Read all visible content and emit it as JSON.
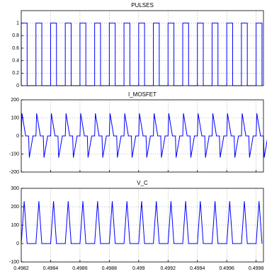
{
  "chart_data": [
    {
      "type": "line",
      "title": "PULSES",
      "color": "#0000ff",
      "grid": true,
      "xlim": [
        0.4982,
        0.49985
      ],
      "xticks": [
        0.4982,
        0.4984,
        0.4986,
        0.4988,
        0.499,
        0.4992,
        0.4994,
        0.4996,
        0.4998
      ],
      "ylim": [
        0,
        1.2
      ],
      "yticks": [
        0,
        0.2,
        0.4,
        0.6,
        0.8,
        1
      ],
      "x": [
        0.4982,
        0.4982,
        0.49824,
        0.49824,
        0.4983,
        0.4983,
        0.49834,
        0.49834,
        0.4984,
        0.4984,
        0.49844,
        0.49844,
        0.4985,
        0.4985,
        0.49854,
        0.49854,
        0.4986,
        0.4986,
        0.49864,
        0.49864,
        0.4987,
        0.4987,
        0.49874,
        0.49874,
        0.4988,
        0.4988,
        0.49884,
        0.49884,
        0.4989,
        0.4989,
        0.49894,
        0.49894,
        0.499,
        0.499,
        0.49904,
        0.49904,
        0.4991,
        0.4991,
        0.49914,
        0.49914,
        0.4992,
        0.4992,
        0.49924,
        0.49924,
        0.4993,
        0.4993,
        0.49934,
        0.49934,
        0.4994,
        0.4994,
        0.49944,
        0.49944,
        0.4995,
        0.4995,
        0.49954,
        0.49954,
        0.4996,
        0.4996,
        0.49964,
        0.49964,
        0.4997,
        0.4997,
        0.49974,
        0.49974,
        0.4998,
        0.4998,
        0.49984,
        0.49984
      ],
      "values": [
        0,
        1,
        1,
        0,
        0,
        1,
        1,
        0,
        0,
        1,
        1,
        0,
        0,
        1,
        1,
        0,
        0,
        1,
        1,
        0,
        0,
        1,
        1,
        0,
        0,
        1,
        1,
        0,
        0,
        1,
        1,
        0,
        0,
        1,
        1,
        0,
        0,
        1,
        1,
        0,
        0,
        1,
        1,
        0,
        0,
        1,
        1,
        0,
        0,
        1,
        1,
        0,
        0,
        1,
        1,
        0,
        0,
        1,
        1,
        0,
        0,
        1,
        1,
        0,
        0,
        1,
        1,
        0
      ]
    },
    {
      "type": "line",
      "title": "I_MOSFET",
      "color": "#0000ff",
      "grid": true,
      "xlim": [
        0.4982,
        0.49985
      ],
      "xticks": [
        0.4982,
        0.4984,
        0.4986,
        0.4988,
        0.499,
        0.4992,
        0.4994,
        0.4996,
        0.4998
      ],
      "ylim": [
        -200,
        200
      ],
      "yticks": [
        -200,
        -100,
        0,
        100,
        200
      ],
      "x": [
        0.4982,
        0.498205,
        0.49823,
        0.49825,
        0.498255,
        0.49828,
        0.4983,
        0.498305,
        0.49833,
        0.49835,
        0.498355,
        0.49838,
        0.4984,
        0.498405,
        0.49843,
        0.49845,
        0.498455,
        0.49848,
        0.4985,
        0.498505,
        0.49853,
        0.49855,
        0.498555,
        0.49858,
        0.4986,
        0.498605,
        0.49863,
        0.49865,
        0.498655,
        0.49868,
        0.4987,
        0.498705,
        0.49873,
        0.49875,
        0.498755,
        0.49878,
        0.4988,
        0.498805,
        0.49883,
        0.49885,
        0.498855,
        0.49888,
        0.4989,
        0.498905,
        0.49893,
        0.49895,
        0.498955,
        0.49898,
        0.499,
        0.499005,
        0.49903,
        0.49905,
        0.499055,
        0.49908,
        0.4991,
        0.499105,
        0.49913,
        0.49915,
        0.499155,
        0.49918,
        0.4992,
        0.499205,
        0.49923,
        0.49925,
        0.499255,
        0.49928,
        0.4993,
        0.499305,
        0.49933,
        0.49935,
        0.499355,
        0.49938,
        0.4994,
        0.499405,
        0.49943,
        0.49945,
        0.499455,
        0.49948,
        0.4995,
        0.499505,
        0.49953,
        0.49955,
        0.499555,
        0.49958,
        0.4996,
        0.499605,
        0.49963,
        0.49965,
        0.499655,
        0.49968,
        0.4997,
        0.499705,
        0.49973,
        0.49975,
        0.499755,
        0.49978,
        0.4998,
        0.499805,
        0.49983,
        0.49985,
        0.499855,
        0.49988
      ],
      "values": [
        0,
        125,
        0,
        0,
        -120,
        0,
        0,
        125,
        0,
        0,
        -120,
        0,
        0,
        125,
        0,
        0,
        -120,
        0,
        0,
        125,
        0,
        0,
        -120,
        0,
        0,
        125,
        0,
        0,
        -120,
        0,
        0,
        125,
        0,
        0,
        -120,
        0,
        0,
        125,
        0,
        0,
        -120,
        0,
        0,
        125,
        0,
        0,
        -120,
        0,
        0,
        125,
        0,
        0,
        -120,
        0,
        0,
        125,
        0,
        0,
        -120,
        0,
        0,
        125,
        0,
        0,
        -120,
        0,
        0,
        125,
        0,
        0,
        -120,
        0,
        0,
        125,
        0,
        0,
        -120,
        0,
        0,
        125,
        0,
        0,
        -120,
        0,
        0,
        125,
        0,
        0,
        -120,
        0,
        0,
        125,
        0,
        0,
        -120,
        0,
        0,
        125,
        0,
        0,
        -120,
        0
      ]
    },
    {
      "type": "line",
      "title": "V_C",
      "color": "#0000ff",
      "grid": true,
      "xlim": [
        0.4982,
        0.49985
      ],
      "xticks": [
        0.4982,
        0.4984,
        0.4986,
        0.4988,
        0.499,
        0.4992,
        0.4994,
        0.4996,
        0.4998
      ],
      "ylim": [
        -100,
        300
      ],
      "yticks": [
        -100,
        0,
        100,
        200,
        300
      ],
      "x": [
        0.4982,
        0.49822,
        0.49824,
        0.4983,
        0.49832,
        0.49834,
        0.4984,
        0.49842,
        0.49844,
        0.4985,
        0.49852,
        0.49854,
        0.4986,
        0.49862,
        0.49864,
        0.4987,
        0.49872,
        0.49874,
        0.4988,
        0.49882,
        0.49884,
        0.4989,
        0.49892,
        0.49894,
        0.499,
        0.49902,
        0.49904,
        0.4991,
        0.49912,
        0.49914,
        0.4992,
        0.49922,
        0.49924,
        0.4993,
        0.49932,
        0.49934,
        0.4994,
        0.49942,
        0.49944,
        0.4995,
        0.49952,
        0.49954,
        0.4996,
        0.49962,
        0.49964,
        0.4997,
        0.49972,
        0.49974,
        0.4998,
        0.49982,
        0.49984
      ],
      "values": [
        0,
        230,
        0,
        0,
        230,
        0,
        0,
        230,
        0,
        0,
        230,
        0,
        0,
        230,
        0,
        0,
        230,
        0,
        0,
        230,
        0,
        0,
        230,
        0,
        0,
        230,
        0,
        0,
        230,
        0,
        0,
        230,
        0,
        0,
        230,
        0,
        0,
        230,
        0,
        0,
        230,
        0,
        0,
        230,
        0,
        0,
        230,
        0,
        0,
        230,
        0
      ]
    }
  ]
}
